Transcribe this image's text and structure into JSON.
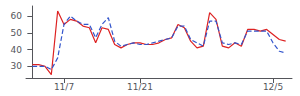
{
  "chart_data": {
    "type": "line",
    "x": [
      0,
      1,
      2,
      3,
      4,
      5,
      6,
      7,
      8,
      9,
      10,
      11,
      12,
      13,
      14,
      15,
      16,
      17,
      18,
      19,
      20,
      21,
      22,
      23,
      24,
      25,
      26,
      27,
      28,
      29,
      30,
      31,
      32,
      33,
      34,
      35,
      36,
      37,
      38,
      39,
      40
    ],
    "series": [
      {
        "color": "#dd2222",
        "line_style": "solid",
        "values": [
          31,
          31,
          30,
          25,
          63,
          55,
          58,
          57,
          54,
          53,
          44,
          53,
          52,
          43,
          41,
          43,
          44,
          44,
          43,
          43,
          44,
          46,
          47,
          55,
          53,
          45,
          41,
          42,
          62,
          58,
          42,
          41,
          44,
          42,
          52,
          52,
          51,
          52,
          49,
          46,
          45
        ]
      },
      {
        "color": "#3355cc",
        "line_style": "dashed",
        "values": [
          30,
          30,
          30,
          28,
          35,
          55,
          60,
          57,
          55,
          55,
          47,
          55,
          59,
          45,
          42,
          43,
          44,
          43,
          43,
          44,
          45,
          46,
          47,
          54,
          54,
          46,
          44,
          42,
          57,
          57,
          44,
          43,
          44,
          43,
          51,
          51,
          51,
          51,
          44,
          39,
          38
        ]
      }
    ],
    "xlim": [
      -1,
      41
    ],
    "xticks": [
      {
        "value": 5,
        "label": "11/7"
      },
      {
        "value": 17,
        "label": "11/21"
      },
      {
        "value": 38,
        "label": "12/5"
      }
    ],
    "ylim": [
      23,
      66
    ],
    "yticks": [
      30,
      40,
      50,
      60
    ],
    "grid": false
  }
}
